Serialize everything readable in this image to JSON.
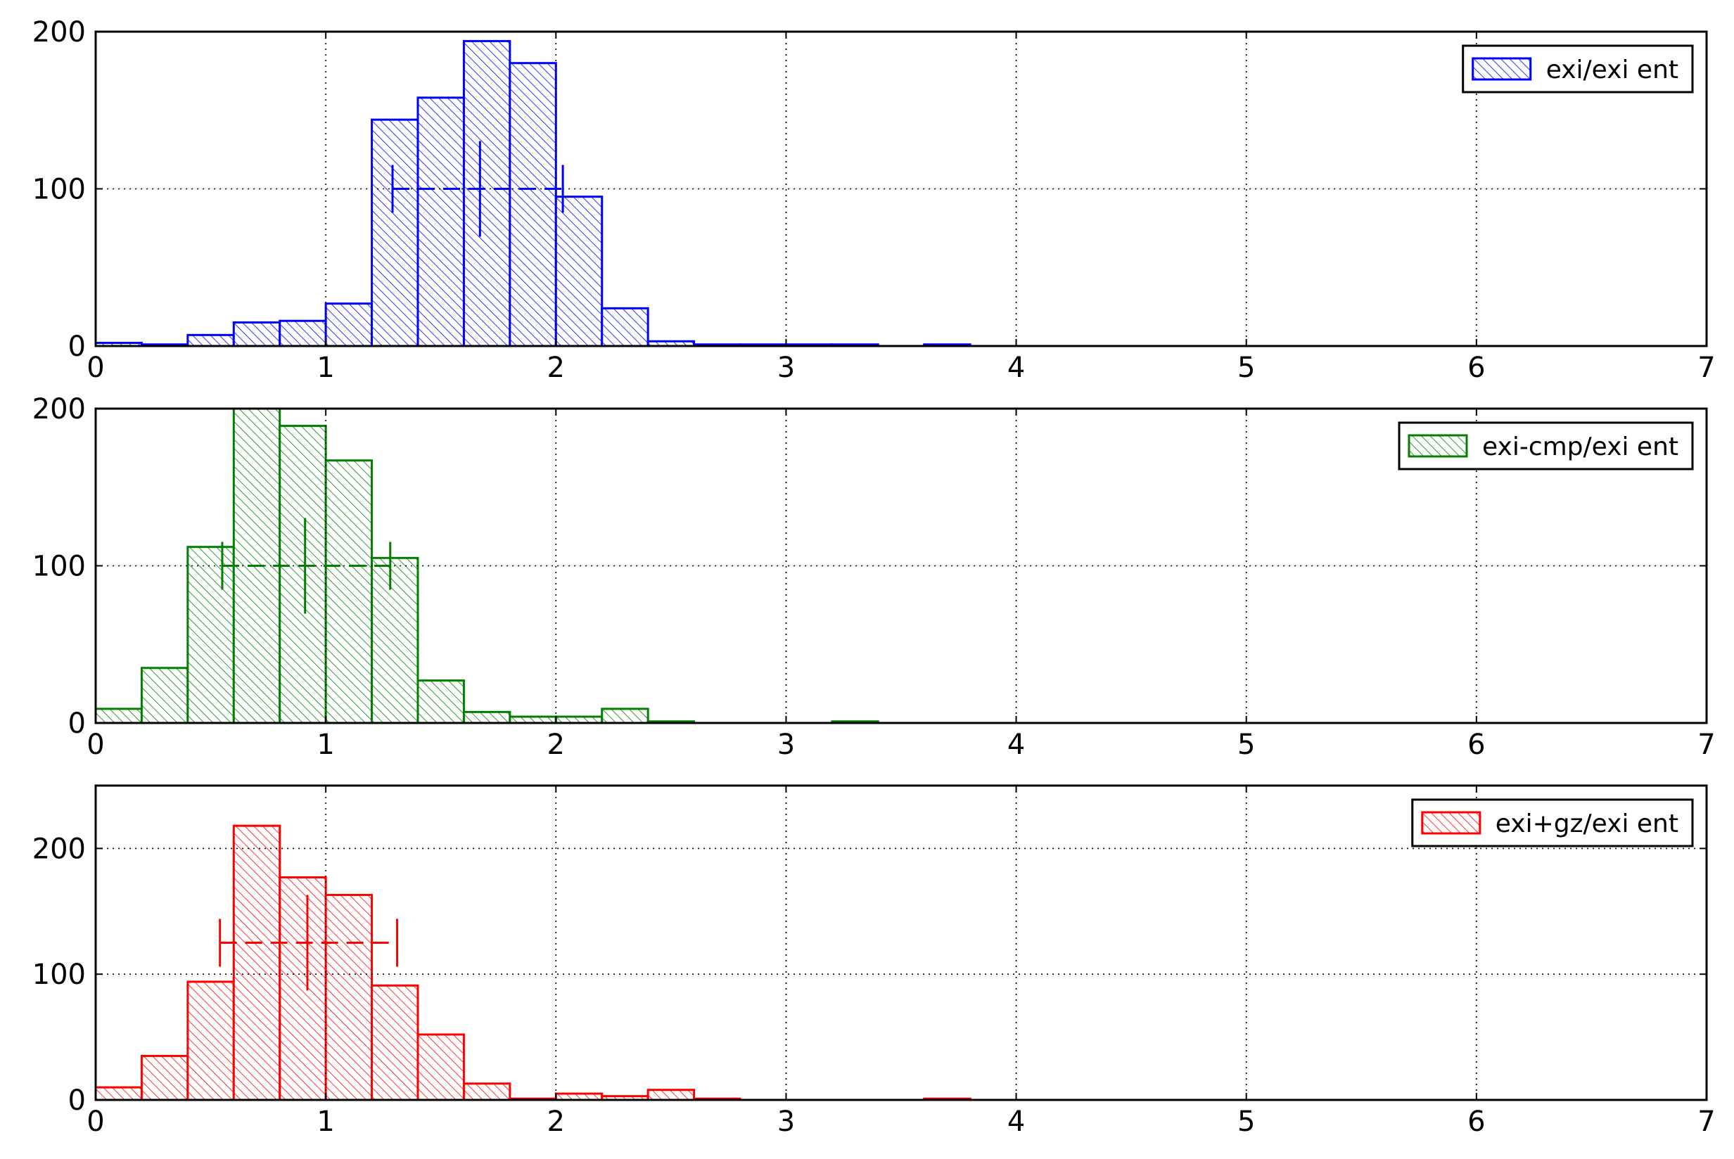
{
  "chart_data": [
    {
      "type": "bar",
      "color": "#0000ff",
      "legend_label": "exi/exi ent",
      "legend_position": "top-right",
      "bin_width": 0.2,
      "bin_starts": [
        0.0,
        0.2,
        0.4,
        0.6,
        0.8,
        1.0,
        1.2,
        1.4,
        1.6,
        1.8,
        2.0,
        2.2,
        2.4,
        2.6,
        2.8,
        3.0,
        3.2,
        3.4,
        3.6,
        3.8
      ],
      "values": [
        2,
        1,
        7,
        15,
        16,
        27,
        144,
        158,
        194,
        180,
        95,
        24,
        3,
        1,
        1,
        1,
        1,
        0,
        1,
        0
      ],
      "xlim": [
        0,
        7
      ],
      "ylim": [
        0,
        200
      ],
      "xticks": [
        "0",
        "1",
        "2",
        "3",
        "4",
        "5",
        "6",
        "7"
      ],
      "yticks": [
        "0",
        "100",
        "200"
      ],
      "grid": true,
      "marker": {
        "y": 100,
        "low": 1.29,
        "center": 1.67,
        "high": 2.03
      }
    },
    {
      "type": "bar",
      "color": "#007f00",
      "legend_label": "exi-cmp/exi ent",
      "legend_position": "top-right",
      "bin_width": 0.2,
      "bin_starts": [
        0.0,
        0.2,
        0.4,
        0.6,
        0.8,
        1.0,
        1.2,
        1.4,
        1.6,
        1.8,
        2.0,
        2.2,
        2.4,
        2.6,
        2.8,
        3.0,
        3.2,
        3.4,
        3.6,
        3.8
      ],
      "values": [
        9,
        35,
        112,
        200,
        189,
        167,
        105,
        27,
        7,
        4,
        4,
        9,
        1,
        0,
        0,
        0,
        1,
        0,
        0,
        0
      ],
      "xlim": [
        0,
        7
      ],
      "ylim": [
        0,
        200
      ],
      "xticks": [
        "0",
        "1",
        "2",
        "3",
        "4",
        "5",
        "6",
        "7"
      ],
      "yticks": [
        "0",
        "100",
        "200"
      ],
      "grid": true,
      "marker": {
        "y": 100,
        "low": 0.55,
        "center": 0.91,
        "high": 1.28
      }
    },
    {
      "type": "bar",
      "color": "#ff0000",
      "legend_label": "exi+gz/exi ent",
      "legend_position": "top-right",
      "bin_width": 0.2,
      "bin_starts": [
        0.0,
        0.2,
        0.4,
        0.6,
        0.8,
        1.0,
        1.2,
        1.4,
        1.6,
        1.8,
        2.0,
        2.2,
        2.4,
        2.6,
        2.8,
        3.0,
        3.2,
        3.4,
        3.6,
        3.8
      ],
      "values": [
        10,
        35,
        94,
        218,
        177,
        163,
        91,
        52,
        13,
        1,
        5,
        3,
        8,
        1,
        0,
        0,
        0,
        0,
        1,
        0
      ],
      "xlim": [
        0,
        7
      ],
      "ylim": [
        0,
        250
      ],
      "xticks": [
        "0",
        "1",
        "2",
        "3",
        "4",
        "5",
        "6",
        "7"
      ],
      "yticks": [
        "0",
        "100",
        "200"
      ],
      "ytick_values": [
        0,
        100,
        200
      ],
      "grid": true,
      "marker": {
        "y": 125,
        "low": 0.54,
        "center": 0.92,
        "high": 1.31
      }
    }
  ]
}
